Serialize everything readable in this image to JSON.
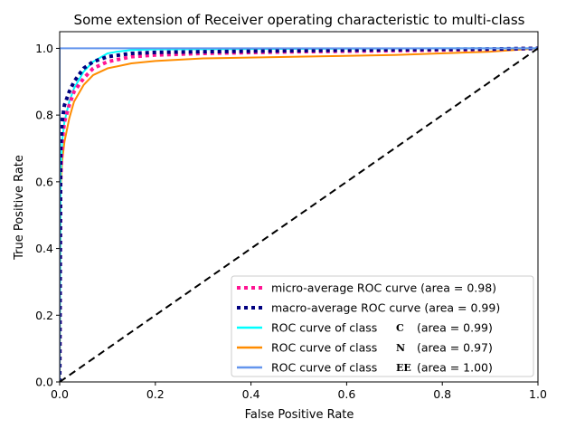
{
  "chart_data": {
    "type": "line",
    "title": "Some extension of Receiver operating characteristic to multi-class",
    "xlabel": "False Positive Rate",
    "ylabel": "True Positive Rate",
    "xlim": [
      0.0,
      1.0
    ],
    "ylim": [
      0.0,
      1.05
    ],
    "xticks": [
      "0.0",
      "0.2",
      "0.4",
      "0.6",
      "0.8",
      "1.0"
    ],
    "yticks": [
      "0.0",
      "0.2",
      "0.4",
      "0.6",
      "0.8",
      "1.0"
    ],
    "legend_position": "lower-right",
    "series": [
      {
        "name": "micro-average ROC curve (area = 0.98)",
        "color": "#ff1493",
        "style": "dotted",
        "x": [
          0,
          0.002,
          0.005,
          0.01,
          0.02,
          0.03,
          0.05,
          0.07,
          0.1,
          0.15,
          0.2,
          0.3,
          0.5,
          0.7,
          0.9,
          1.0
        ],
        "y": [
          0,
          0.6,
          0.72,
          0.78,
          0.83,
          0.87,
          0.91,
          0.94,
          0.96,
          0.975,
          0.98,
          0.985,
          0.99,
          0.993,
          0.997,
          1.0
        ]
      },
      {
        "name": "macro-average ROC curve (area = 0.99)",
        "color": "#000080",
        "style": "dotted",
        "x": [
          0,
          0.002,
          0.005,
          0.01,
          0.02,
          0.03,
          0.05,
          0.07,
          0.1,
          0.15,
          0.2,
          0.3,
          0.5,
          0.7,
          0.9,
          1.0
        ],
        "y": [
          0,
          0.7,
          0.78,
          0.83,
          0.87,
          0.9,
          0.94,
          0.96,
          0.975,
          0.985,
          0.988,
          0.99,
          0.993,
          0.996,
          0.998,
          1.0
        ]
      },
      {
        "name": "ROC curve of class",
        "class_label": "C",
        "area_text": "(area = 0.99)",
        "color": "#00ffff",
        "style": "solid",
        "x": [
          0,
          0.002,
          0.005,
          0.01,
          0.02,
          0.03,
          0.05,
          0.07,
          0.1,
          0.12,
          0.15,
          0.2,
          0.4,
          0.6,
          0.8,
          1.0
        ],
        "y": [
          0,
          0.62,
          0.72,
          0.78,
          0.84,
          0.88,
          0.93,
          0.96,
          0.985,
          0.99,
          0.995,
          0.997,
          0.998,
          0.999,
          1.0,
          1.0
        ]
      },
      {
        "name": "ROC curve of class",
        "class_label": "N",
        "area_text": "(area = 0.97)",
        "color": "#ff8c00",
        "style": "solid",
        "x": [
          0,
          0.002,
          0.005,
          0.01,
          0.02,
          0.03,
          0.05,
          0.07,
          0.1,
          0.15,
          0.2,
          0.3,
          0.5,
          0.7,
          0.9,
          1.0
        ],
        "y": [
          0,
          0.58,
          0.66,
          0.72,
          0.79,
          0.84,
          0.89,
          0.92,
          0.94,
          0.955,
          0.962,
          0.97,
          0.975,
          0.98,
          0.99,
          1.0
        ]
      },
      {
        "name": "ROC curve of class",
        "class_label": "EE",
        "area_text": "(area = 1.00)",
        "color": "#6495ed",
        "style": "solid",
        "x": [
          0,
          0,
          1.0
        ],
        "y": [
          0,
          1.0,
          1.0
        ]
      }
    ],
    "reference_line": {
      "x": [
        0,
        1
      ],
      "y": [
        0,
        1
      ],
      "color": "#000000",
      "style": "dashed"
    }
  }
}
